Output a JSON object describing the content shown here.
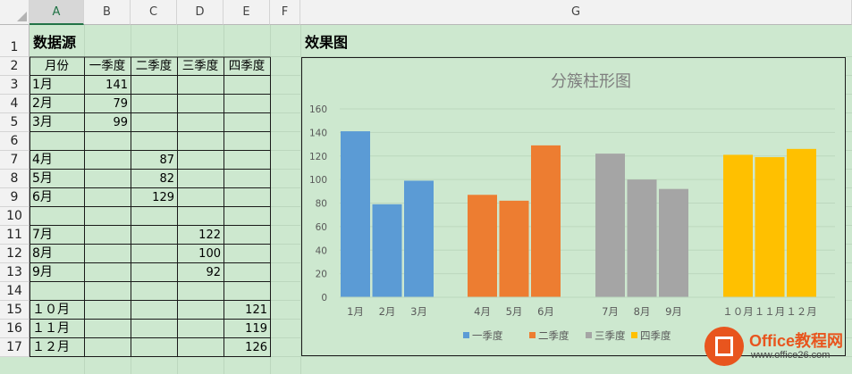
{
  "columns": [
    "A",
    "B",
    "C",
    "D",
    "E",
    "F",
    "G"
  ],
  "rows": [
    "1",
    "2",
    "3",
    "4",
    "5",
    "6",
    "7",
    "8",
    "9",
    "10",
    "11",
    "12",
    "13",
    "14",
    "15",
    "16",
    "17"
  ],
  "sheet": {
    "title": "数据源",
    "headers": [
      "月份",
      "一季度",
      "二季度",
      "三季度",
      "四季度"
    ],
    "data_rows": [
      {
        "row": "3",
        "month": "1月",
        "col": 1,
        "value": "141"
      },
      {
        "row": "4",
        "month": "2月",
        "col": 1,
        "value": "79"
      },
      {
        "row": "5",
        "month": "3月",
        "col": 1,
        "value": "99"
      },
      {
        "row": "7",
        "month": "4月",
        "col": 2,
        "value": "87"
      },
      {
        "row": "8",
        "month": "5月",
        "col": 2,
        "value": "82"
      },
      {
        "row": "9",
        "month": "6月",
        "col": 2,
        "value": "129"
      },
      {
        "row": "11",
        "month": "7月",
        "col": 3,
        "value": "122"
      },
      {
        "row": "12",
        "month": "8月",
        "col": 3,
        "value": "100"
      },
      {
        "row": "13",
        "month": "9月",
        "col": 3,
        "value": "92"
      },
      {
        "row": "15",
        "month": "１０月",
        "col": 4,
        "value": "121"
      },
      {
        "row": "16",
        "month": "１１月",
        "col": 4,
        "value": "119"
      },
      {
        "row": "17",
        "month": "１２月",
        "col": 4,
        "value": "126"
      }
    ]
  },
  "chart_label": "效果图",
  "chart_data": {
    "type": "bar",
    "title": "分簇柱形图",
    "categories": [
      "1月",
      "2月",
      "3月",
      "",
      "4月",
      "5月",
      "6月",
      "",
      "7月",
      "8月",
      "9月",
      "",
      "１０月",
      "１１月",
      "１２月"
    ],
    "series": [
      {
        "name": "一季度",
        "color": "#5b9bd5",
        "values": [
          141,
          79,
          99,
          null,
          null,
          null,
          null,
          null,
          null,
          null,
          null,
          null,
          null,
          null,
          null
        ]
      },
      {
        "name": "二季度",
        "color": "#ed7d31",
        "values": [
          null,
          null,
          null,
          null,
          87,
          82,
          129,
          null,
          null,
          null,
          null,
          null,
          null,
          null,
          null
        ]
      },
      {
        "name": "三季度",
        "color": "#a5a5a5",
        "values": [
          null,
          null,
          null,
          null,
          null,
          null,
          null,
          null,
          122,
          100,
          92,
          null,
          null,
          null,
          null
        ]
      },
      {
        "name": "四季度",
        "color": "#ffc000",
        "values": [
          null,
          null,
          null,
          null,
          null,
          null,
          null,
          null,
          null,
          null,
          null,
          null,
          121,
          119,
          126
        ]
      }
    ],
    "yticks": [
      "0",
      "20",
      "40",
      "60",
      "80",
      "100",
      "120",
      "140",
      "160"
    ],
    "ylim": [
      0,
      160
    ],
    "grid": true,
    "legend": "bottom"
  },
  "watermark": {
    "title": "Office教程网",
    "url": "www.office26.com"
  }
}
